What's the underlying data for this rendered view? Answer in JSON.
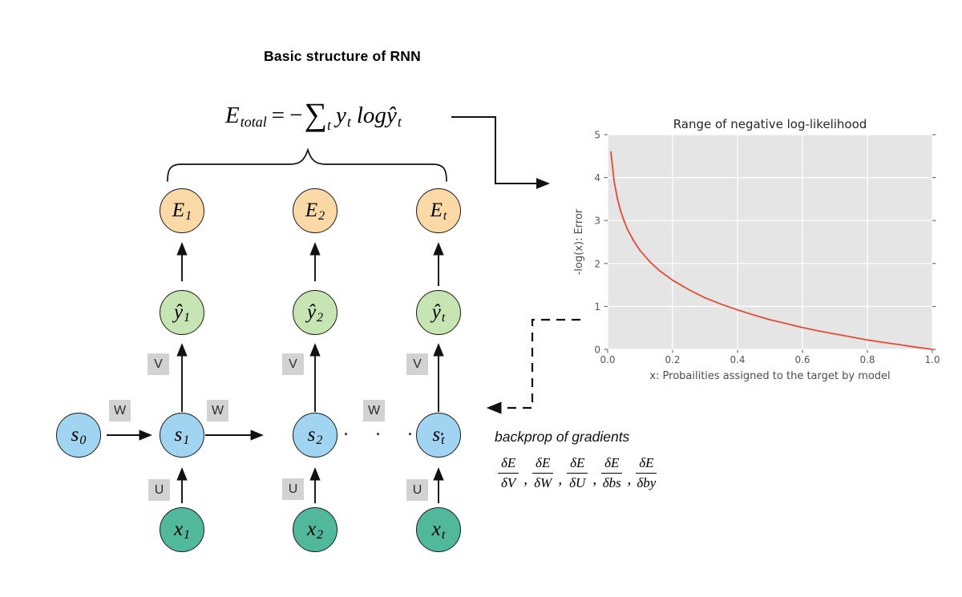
{
  "header": {
    "title": "Basic structure of RNN"
  },
  "formula": {
    "E": "E",
    "E_sub": "total",
    "eq": "=",
    "minus": "−",
    "sigma": "∑",
    "sigma_sub": "t",
    "y": "y",
    "y_sub": "t",
    "log": "log",
    "yhat": "ŷ",
    "yhat_sub": "t"
  },
  "nodes": {
    "E1": {
      "base": "E",
      "sub": "1"
    },
    "E2": {
      "base": "E",
      "sub": "2"
    },
    "Et": {
      "base": "E",
      "sub": "t"
    },
    "y1": {
      "base": "ŷ",
      "sub": "1"
    },
    "y2": {
      "base": "ŷ",
      "sub": "2"
    },
    "yt": {
      "base": "ŷ",
      "sub": "t"
    },
    "s0": {
      "base": "s",
      "sub": "0"
    },
    "s1": {
      "base": "s",
      "sub": "1"
    },
    "s2": {
      "base": "s",
      "sub": "2"
    },
    "st": {
      "base": "s",
      "sub": "t"
    },
    "x1": {
      "base": "x",
      "sub": "1"
    },
    "x2": {
      "base": "x",
      "sub": "2"
    },
    "xt": {
      "base": "x",
      "sub": "t"
    }
  },
  "edge_labels": {
    "W": "W",
    "V": "V",
    "U": "U"
  },
  "ellipsis": ". . . .",
  "backprop": {
    "caption": "backprop of gradients",
    "separator": ",",
    "fractions": [
      {
        "num": "δE",
        "den": "δV"
      },
      {
        "num": "δE",
        "den": "δW"
      },
      {
        "num": "δE",
        "den": "δU"
      },
      {
        "num": "δE",
        "den": "δbs"
      },
      {
        "num": "δE",
        "den": "δby"
      }
    ]
  },
  "colors": {
    "E_node": "#fbd9a6",
    "y_node": "#c6e5b2",
    "s_node": "#a0d4f1",
    "x_node": "#52b89c",
    "box_bg": "#d2d2d2",
    "chart_line": "#e24a33",
    "chart_bg": "#e5e5e5",
    "tick_color": "#555555"
  },
  "chart_data": {
    "type": "line",
    "title": "Range of negative log-likelihood",
    "xlabel": "x: Probailities assigned to the target by model",
    "ylabel": "-log(x): Error",
    "xlim": [
      0,
      1
    ],
    "ylim": [
      0,
      5
    ],
    "xticks": [
      0.0,
      0.2,
      0.4,
      0.6,
      0.8,
      1.0
    ],
    "xtick_labels": [
      "0.0",
      "0.2",
      "0.4",
      "0.6",
      "0.8",
      "1.0"
    ],
    "yticks": [
      0,
      1,
      2,
      3,
      4,
      5
    ],
    "ytick_labels": [
      "0",
      "1",
      "2",
      "3",
      "4",
      "5"
    ],
    "grid": true,
    "legend": "none",
    "background": "#e5e5e5",
    "line_color": "#e24a33",
    "series": [
      {
        "name": "-log(x)",
        "x": [
          0.01,
          0.02,
          0.03,
          0.04,
          0.05,
          0.06,
          0.08,
          0.1,
          0.13,
          0.16,
          0.2,
          0.25,
          0.3,
          0.35,
          0.4,
          0.45,
          0.5,
          0.55,
          0.6,
          0.65,
          0.7,
          0.75,
          0.8,
          0.85,
          0.9,
          0.95,
          1.0
        ],
        "y": [
          4.61,
          3.91,
          3.51,
          3.22,
          3.0,
          2.81,
          2.53,
          2.3,
          2.04,
          1.83,
          1.61,
          1.39,
          1.2,
          1.05,
          0.92,
          0.8,
          0.69,
          0.6,
          0.51,
          0.43,
          0.36,
          0.29,
          0.22,
          0.16,
          0.11,
          0.05,
          0.0
        ]
      }
    ]
  }
}
